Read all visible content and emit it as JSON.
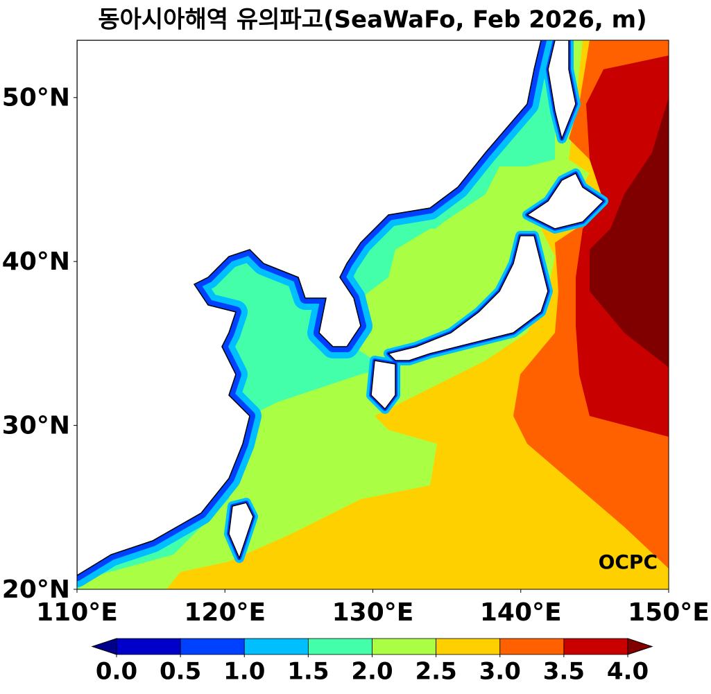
{
  "chart_data": {
    "type": "contour",
    "title": "동아시아해역 유의파고(SeaWaFo, Feb 2026, m)",
    "logo": "OCPC",
    "xlim": [
      110,
      150
    ],
    "ylim": [
      20,
      53.5
    ],
    "xticks": [
      {
        "value": 110,
        "label": "110°E"
      },
      {
        "value": 120,
        "label": "120°E"
      },
      {
        "value": 130,
        "label": "130°E"
      },
      {
        "value": 140,
        "label": "140°E"
      },
      {
        "value": 150,
        "label": "150°E"
      }
    ],
    "yticks": [
      {
        "value": 20,
        "label": "20°N"
      },
      {
        "value": 30,
        "label": "30°N"
      },
      {
        "value": 40,
        "label": "40°N"
      },
      {
        "value": 50,
        "label": "50°N"
      }
    ],
    "colorbar": {
      "ticks": [
        {
          "value": 0,
          "label": "0.0"
        },
        {
          "value": 0.5,
          "label": "0.5"
        },
        {
          "value": 1,
          "label": "1.0"
        },
        {
          "value": 1.5,
          "label": "1.5"
        },
        {
          "value": 2,
          "label": "2.0"
        },
        {
          "value": 2.5,
          "label": "2.5"
        },
        {
          "value": 3,
          "label": "3.0"
        },
        {
          "value": 3.5,
          "label": "3.5"
        },
        {
          "value": 4,
          "label": "4.0"
        }
      ],
      "colors": [
        "#00008b",
        "#0000c8",
        "#0040ff",
        "#00bfff",
        "#44ffaa",
        "#aaff44",
        "#ffd000",
        "#ff6000",
        "#c80000",
        "#800000"
      ]
    }
  }
}
